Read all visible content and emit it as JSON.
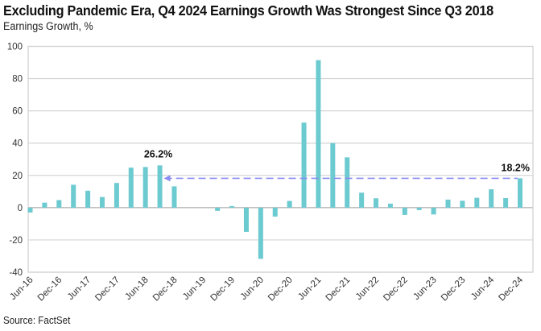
{
  "header": {
    "title": "Excluding Pandemic Era, Q4 2024 Earnings Growth Was Strongest Since Q3 2018",
    "subtitle": "Earnings Growth, %"
  },
  "footer": {
    "source": "Source: FactSet"
  },
  "chart_data": {
    "type": "bar",
    "title": "Excluding Pandemic Era, Q4 2024 Earnings Growth Was Strongest Since Q3 2018",
    "ylabel": "Earnings Growth, %",
    "xlabel": "",
    "ylim": [
      -40,
      100
    ],
    "yticks": [
      -40,
      -20,
      0,
      20,
      40,
      60,
      80,
      100
    ],
    "grid": true,
    "colors": {
      "bar": "#6ccad1",
      "reference_line": "#8a8cf2",
      "grid": "#d4d4d4"
    },
    "categories": [
      "Jun-16",
      "Sep-16",
      "Dec-16",
      "Mar-17",
      "Jun-17",
      "Sep-17",
      "Dec-17",
      "Mar-18",
      "Jun-18",
      "Sep-18",
      "Dec-18",
      "Mar-19",
      "Jun-19",
      "Sep-19",
      "Dec-19",
      "Mar-20",
      "Jun-20",
      "Sep-20",
      "Dec-20",
      "Mar-21",
      "Jun-21",
      "Sep-21",
      "Dec-21",
      "Mar-22",
      "Jun-22",
      "Sep-22",
      "Dec-22",
      "Mar-23",
      "Jun-23",
      "Sep-23",
      "Dec-23",
      "Mar-24",
      "Jun-24",
      "Sep-24",
      "Dec-24"
    ],
    "values": [
      -3.0,
      3.1,
      4.7,
      14.2,
      10.5,
      6.6,
      15.3,
      24.8,
      25.2,
      26.2,
      13.2,
      0,
      0,
      -2.0,
      1.0,
      -15.0,
      -31.7,
      -5.5,
      4.2,
      52.7,
      91.4,
      40.0,
      31.2,
      9.3,
      5.8,
      2.5,
      -4.5,
      -1.5,
      -4.2,
      5.0,
      4.3,
      6.1,
      11.4,
      5.9,
      18.2
    ],
    "xtick_labels": [
      "Jun-16",
      "Dec-16",
      "Jun-17",
      "Dec-17",
      "Jun-18",
      "Dec-18",
      "Jun-19",
      "Dec-19",
      "Jun-20",
      "Dec-20",
      "Jun-21",
      "Dec-21",
      "Jun-22",
      "Dec-22",
      "Jun-23",
      "Dec-23",
      "Jun-24",
      "Dec-24"
    ],
    "annotations": [
      {
        "text": "26.2%",
        "category": "Sep-18",
        "value": 26.2
      },
      {
        "text": "18.2%",
        "category": "Dec-24",
        "value": 18.2
      }
    ],
    "reference_line": {
      "value": 18.2,
      "from": "Sep-18",
      "to": "Dec-24",
      "style": "dashed-arrow"
    }
  }
}
